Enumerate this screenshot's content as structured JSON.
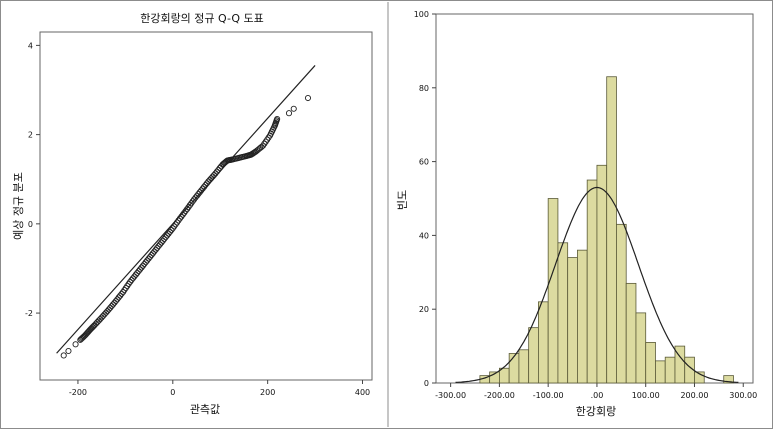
{
  "colors": {
    "frame": "#8c8c8c",
    "plot_bg": "#ffffff",
    "bar_fill": "#dcdba0",
    "bar_stroke": "#5a5a38",
    "line": "#222222",
    "point": "#222222"
  },
  "chart_data": [
    {
      "type": "scatter",
      "title": "한강회랑의 정규 Q-Q 도표",
      "xlabel": "관측값",
      "ylabel": "예상 정규 분포",
      "xlim": [
        -280,
        420
      ],
      "ylim": [
        -3.5,
        4.3
      ],
      "x_ticks": [
        -200,
        0,
        200,
        400
      ],
      "y_ticks": [
        -2,
        0,
        2,
        4
      ],
      "reference_line": {
        "x": [
          -245,
          300
        ],
        "y": [
          -2.9,
          3.55
        ]
      },
      "quantile_points": [
        [
          -230,
          -2.95
        ],
        [
          -220,
          -2.85
        ],
        [
          -205,
          -2.7
        ],
        [
          -195,
          -2.6
        ],
        [
          -185,
          -2.5
        ],
        [
          -175,
          -2.38
        ],
        [
          -165,
          -2.27
        ],
        [
          -150,
          -2.1
        ],
        [
          -135,
          -1.92
        ],
        [
          -120,
          -1.73
        ],
        [
          -105,
          -1.53
        ],
        [
          -90,
          -1.3
        ],
        [
          -75,
          -1.1
        ],
        [
          -60,
          -0.9
        ],
        [
          -45,
          -0.7
        ],
        [
          -30,
          -0.5
        ],
        [
          -15,
          -0.3
        ],
        [
          0,
          -0.1
        ],
        [
          15,
          0.12
        ],
        [
          30,
          0.33
        ],
        [
          45,
          0.55
        ],
        [
          60,
          0.75
        ],
        [
          75,
          0.95
        ],
        [
          90,
          1.13
        ],
        [
          105,
          1.33
        ],
        [
          115,
          1.42
        ],
        [
          125,
          1.44
        ],
        [
          140,
          1.48
        ],
        [
          155,
          1.52
        ],
        [
          165,
          1.55
        ],
        [
          175,
          1.62
        ],
        [
          190,
          1.75
        ],
        [
          205,
          1.98
        ],
        [
          215,
          2.2
        ],
        [
          220,
          2.35
        ],
        [
          245,
          2.48
        ],
        [
          255,
          2.58
        ],
        [
          285,
          2.82
        ]
      ]
    },
    {
      "type": "bar",
      "xlabel": "한강회랑",
      "ylabel": "빈도",
      "xlim": [
        -330,
        320
      ],
      "ylim": [
        0,
        100
      ],
      "x_ticks": [
        "-300.00",
        "-200.00",
        "-100.00",
        ".00",
        "100.00",
        "200.00",
        "300.00"
      ],
      "y_ticks": [
        0,
        20,
        40,
        60,
        80,
        100
      ],
      "bin_width": 20,
      "bins": [
        {
          "start": -240,
          "value": 2
        },
        {
          "start": -220,
          "value": 3
        },
        {
          "start": -200,
          "value": 4
        },
        {
          "start": -180,
          "value": 8
        },
        {
          "start": -160,
          "value": 9
        },
        {
          "start": -140,
          "value": 15
        },
        {
          "start": -120,
          "value": 22
        },
        {
          "start": -100,
          "value": 50
        },
        {
          "start": -80,
          "value": 38
        },
        {
          "start": -60,
          "value": 34
        },
        {
          "start": -40,
          "value": 36
        },
        {
          "start": -20,
          "value": 55
        },
        {
          "start": 0,
          "value": 59
        },
        {
          "start": 20,
          "value": 83
        },
        {
          "start": 40,
          "value": 43
        },
        {
          "start": 60,
          "value": 27
        },
        {
          "start": 80,
          "value": 19
        },
        {
          "start": 100,
          "value": 11
        },
        {
          "start": 120,
          "value": 6
        },
        {
          "start": 140,
          "value": 7
        },
        {
          "start": 160,
          "value": 10
        },
        {
          "start": 180,
          "value": 7
        },
        {
          "start": 200,
          "value": 3
        },
        {
          "start": 260,
          "value": 2
        }
      ],
      "normal_curve": {
        "mean": 0,
        "sd": 85,
        "peak": 53
      }
    }
  ]
}
